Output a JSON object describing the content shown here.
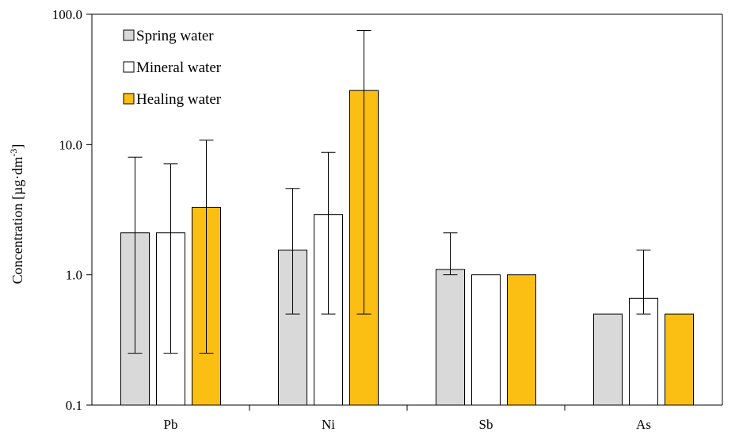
{
  "chart_data": {
    "type": "bar",
    "categories": [
      "Pb",
      "Ni",
      "Sb",
      "As"
    ],
    "ylabel_main": "Concentration [µg·dm",
    "ylabel_sup": "-3",
    "ylabel_end": "]",
    "yscale": "log",
    "ylim": [
      0.1,
      100
    ],
    "ytick_values": [
      0.1,
      1,
      10,
      100
    ],
    "ytick_labels": [
      "0.1",
      "1.0",
      "10.0",
      "100.0"
    ],
    "grid": false,
    "legend_position": "top-left",
    "series": [
      {
        "name": "Spring water",
        "color": "#d9d9d9",
        "values": [
          2.1,
          1.55,
          1.1,
          0.5
        ],
        "err_low": [
          0.25,
          0.5,
          1.0,
          null
        ],
        "err_high": [
          8.0,
          4.6,
          2.1,
          null
        ]
      },
      {
        "name": "Mineral water",
        "color": "#ffffff",
        "values": [
          2.1,
          2.9,
          1.0,
          0.66
        ],
        "err_low": [
          0.25,
          0.5,
          null,
          0.5
        ],
        "err_high": [
          7.1,
          8.7,
          null,
          1.55
        ]
      },
      {
        "name": "Healing water",
        "color": "#fbbf14",
        "values": [
          3.3,
          26.0,
          1.0,
          0.5
        ],
        "err_low": [
          0.25,
          0.5,
          null,
          null
        ],
        "err_high": [
          10.8,
          75.0,
          null,
          null
        ]
      }
    ]
  }
}
